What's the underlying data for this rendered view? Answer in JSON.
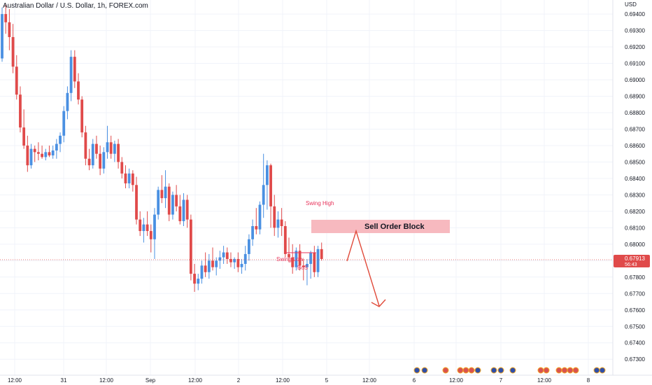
{
  "header": {
    "symbol_title": "Australian Dollar / U.S. Dollar, 1h, FOREX.com"
  },
  "price_axis": {
    "currency": "USD"
  },
  "last_price": {
    "value": "0.67913",
    "countdown": "56:43"
  },
  "colors": {
    "up": "#4a90e2",
    "down": "#e04a4a",
    "accent": "#e8325a",
    "zone": "#f7b9bf",
    "arrow": "#e04a3a"
  },
  "annotations": {
    "swing_high": "Swing High",
    "swing_low": "Swing Low",
    "bos": "BoS",
    "sell_order_block": "Sell Order Block"
  },
  "chart_data": {
    "type": "candlestick",
    "ylim": [
      0.6722,
      0.6946
    ],
    "y_ticks": [
      "0.69400",
      "0.69300",
      "0.69200",
      "0.69100",
      "0.69000",
      "0.68900",
      "0.68800",
      "0.68700",
      "0.68600",
      "0.68500",
      "0.68400",
      "0.68300",
      "0.68200",
      "0.68100",
      "0.68000",
      "0.67900",
      "0.67800",
      "0.67700",
      "0.67600",
      "0.67500",
      "0.67400",
      "0.67300"
    ],
    "x_ticks": [
      "12:00",
      "31",
      "12:00",
      "Sep",
      "12:00",
      "2",
      "12:00",
      "5",
      "12:00",
      "6",
      "12:00",
      "7",
      "12:00",
      "8"
    ],
    "candles": [
      [
        0.6913,
        0.6944,
        0.6911,
        0.694
      ],
      [
        0.694,
        0.6946,
        0.6928,
        0.6935
      ],
      [
        0.6935,
        0.6943,
        0.6918,
        0.6926
      ],
      [
        0.6926,
        0.6934,
        0.6904,
        0.6908
      ],
      [
        0.6908,
        0.6915,
        0.6888,
        0.6891
      ],
      [
        0.6891,
        0.6896,
        0.6868,
        0.6871
      ],
      [
        0.6871,
        0.6882,
        0.6858,
        0.686
      ],
      [
        0.686,
        0.6866,
        0.6844,
        0.6848
      ],
      [
        0.6848,
        0.6861,
        0.6846,
        0.6858
      ],
      [
        0.6858,
        0.686,
        0.685,
        0.6856
      ],
      [
        0.6856,
        0.6862,
        0.6851,
        0.6855
      ],
      [
        0.6855,
        0.686,
        0.6852,
        0.6853
      ],
      [
        0.6853,
        0.6858,
        0.6851,
        0.6856
      ],
      [
        0.6856,
        0.686,
        0.6853,
        0.6854
      ],
      [
        0.6854,
        0.686,
        0.6852,
        0.6857
      ],
      [
        0.6857,
        0.6864,
        0.6852,
        0.6861
      ],
      [
        0.6861,
        0.6868,
        0.6856,
        0.6866
      ],
      [
        0.6866,
        0.6884,
        0.6862,
        0.6881
      ],
      [
        0.6881,
        0.6896,
        0.6876,
        0.6892
      ],
      [
        0.6892,
        0.6918,
        0.6887,
        0.6914
      ],
      [
        0.6914,
        0.6918,
        0.6895,
        0.6899
      ],
      [
        0.6899,
        0.6904,
        0.6885,
        0.6888
      ],
      [
        0.6888,
        0.689,
        0.6865,
        0.6868
      ],
      [
        0.6868,
        0.6872,
        0.6848,
        0.6852
      ],
      [
        0.6852,
        0.6858,
        0.6845,
        0.6848
      ],
      [
        0.6848,
        0.6864,
        0.6846,
        0.6861
      ],
      [
        0.6861,
        0.6866,
        0.6852,
        0.6855
      ],
      [
        0.6855,
        0.686,
        0.6842,
        0.6846
      ],
      [
        0.6846,
        0.6859,
        0.6843,
        0.6856
      ],
      [
        0.6856,
        0.6872,
        0.6852,
        0.6862
      ],
      [
        0.6862,
        0.6866,
        0.6852,
        0.6855
      ],
      [
        0.6855,
        0.6863,
        0.685,
        0.6861
      ],
      [
        0.6861,
        0.6864,
        0.6846,
        0.685
      ],
      [
        0.685,
        0.6853,
        0.684,
        0.6843
      ],
      [
        0.6843,
        0.6848,
        0.6834,
        0.6837
      ],
      [
        0.6837,
        0.6846,
        0.6834,
        0.6843
      ],
      [
        0.6843,
        0.6845,
        0.6832,
        0.6836
      ],
      [
        0.6836,
        0.6841,
        0.6812,
        0.6815
      ],
      [
        0.6815,
        0.682,
        0.6805,
        0.6808
      ],
      [
        0.6808,
        0.6816,
        0.6801,
        0.6812
      ],
      [
        0.6812,
        0.682,
        0.6805,
        0.6808
      ],
      [
        0.6808,
        0.6812,
        0.6795,
        0.6803
      ],
      [
        0.6803,
        0.6822,
        0.6791,
        0.6818
      ],
      [
        0.6818,
        0.6835,
        0.6815,
        0.6833
      ],
      [
        0.6833,
        0.6842,
        0.6825,
        0.6828
      ],
      [
        0.6828,
        0.6845,
        0.6822,
        0.6835
      ],
      [
        0.6835,
        0.6837,
        0.6814,
        0.6818
      ],
      [
        0.6818,
        0.6832,
        0.6815,
        0.683
      ],
      [
        0.683,
        0.6836,
        0.682,
        0.6823
      ],
      [
        0.6823,
        0.683,
        0.6812,
        0.6814
      ],
      [
        0.6814,
        0.6831,
        0.6811,
        0.6827
      ],
      [
        0.6827,
        0.683,
        0.681,
        0.6815
      ],
      [
        0.6815,
        0.6818,
        0.6778,
        0.6782
      ],
      [
        0.6782,
        0.6788,
        0.6771,
        0.6776
      ],
      [
        0.6776,
        0.6782,
        0.6772,
        0.6779
      ],
      [
        0.6779,
        0.679,
        0.6776,
        0.6787
      ],
      [
        0.6787,
        0.6795,
        0.678,
        0.6783
      ],
      [
        0.6783,
        0.6794,
        0.6779,
        0.679
      ],
      [
        0.679,
        0.6798,
        0.6784,
        0.6786
      ],
      [
        0.6786,
        0.6792,
        0.6781,
        0.679
      ],
      [
        0.679,
        0.6796,
        0.6785,
        0.6792
      ],
      [
        0.6792,
        0.6799,
        0.6788,
        0.6795
      ],
      [
        0.6795,
        0.6798,
        0.6788,
        0.6791
      ],
      [
        0.6791,
        0.6795,
        0.6786,
        0.6789
      ],
      [
        0.6789,
        0.6792,
        0.6785,
        0.6791
      ],
      [
        0.6791,
        0.6795,
        0.6783,
        0.6786
      ],
      [
        0.6786,
        0.6791,
        0.6782,
        0.6788
      ],
      [
        0.6788,
        0.6799,
        0.6784,
        0.6794
      ],
      [
        0.6794,
        0.6806,
        0.679,
        0.6803
      ],
      [
        0.6803,
        0.6815,
        0.6799,
        0.6811
      ],
      [
        0.6811,
        0.6822,
        0.6806,
        0.6809
      ],
      [
        0.6809,
        0.6826,
        0.6806,
        0.6824
      ],
      [
        0.6824,
        0.6855,
        0.6816,
        0.6836
      ],
      [
        0.6836,
        0.6851,
        0.6821,
        0.6848
      ],
      [
        0.6848,
        0.6849,
        0.681,
        0.6823
      ],
      [
        0.6823,
        0.683,
        0.6805,
        0.681
      ],
      [
        0.681,
        0.682,
        0.6804,
        0.6815
      ],
      [
        0.6815,
        0.6822,
        0.6805,
        0.6811
      ],
      [
        0.6811,
        0.6814,
        0.6792,
        0.6794
      ],
      [
        0.6794,
        0.6804,
        0.6789,
        0.6792
      ],
      [
        0.6792,
        0.68,
        0.6782,
        0.6786
      ],
      [
        0.6786,
        0.6798,
        0.6784,
        0.6796
      ],
      [
        0.6796,
        0.68,
        0.6784,
        0.6787
      ],
      [
        0.6787,
        0.6791,
        0.6778,
        0.6786
      ],
      [
        0.6786,
        0.6791,
        0.6775,
        0.6788
      ],
      [
        0.6788,
        0.6796,
        0.6779,
        0.6795
      ],
      [
        0.6795,
        0.6799,
        0.678,
        0.6783
      ],
      [
        0.6783,
        0.6799,
        0.678,
        0.6797
      ],
      [
        0.6797,
        0.6801,
        0.679,
        0.6791
      ]
    ]
  }
}
